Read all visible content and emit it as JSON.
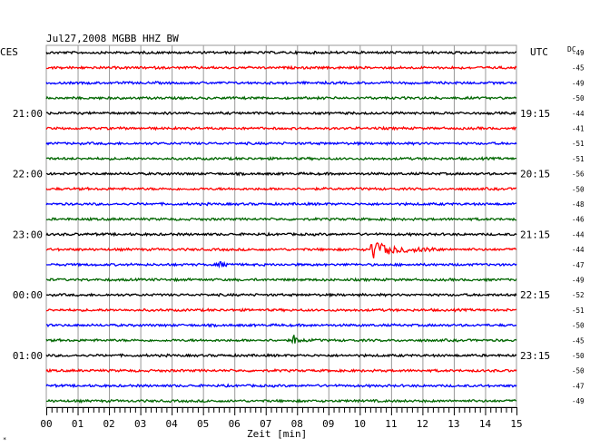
{
  "header": {
    "title": "Jul27,2008   MGBB HHZ BW",
    "left_timezone": "CES",
    "right_timezone": "UTC",
    "dc_label": "DC"
  },
  "footer": {
    "xlabel": "Zeit [min]",
    "corner_mark": "*"
  },
  "colors": {
    "trace_cycle": [
      "#000000",
      "#ff0000",
      "#0000ff",
      "#006600"
    ],
    "grid": "#999999",
    "background": "#ffffff"
  },
  "chart_data": {
    "type": "line",
    "title": "Jul27,2008   MGBB HHZ BW",
    "xlabel": "Zeit [min]",
    "ylabel": "",
    "x_ticks": [
      "00",
      "01",
      "02",
      "03",
      "04",
      "05",
      "06",
      "07",
      "08",
      "09",
      "10",
      "11",
      "12",
      "13",
      "14",
      "15"
    ],
    "xlim": [
      0,
      15
    ],
    "grid": true,
    "rows": 24,
    "left_time_labels": [
      {
        "row": 4,
        "label": "21:00"
      },
      {
        "row": 8,
        "label": "22:00"
      },
      {
        "row": 12,
        "label": "23:00"
      },
      {
        "row": 16,
        "label": "00:00"
      },
      {
        "row": 20,
        "label": "01:00"
      }
    ],
    "right_time_labels": [
      {
        "row": 4,
        "label": "19:15"
      },
      {
        "row": 8,
        "label": "20:15"
      },
      {
        "row": 12,
        "label": "21:15"
      },
      {
        "row": 16,
        "label": "22:15"
      },
      {
        "row": 20,
        "label": "23:15"
      }
    ],
    "dc_offsets": [
      "-49",
      "-45",
      "-49",
      "-50",
      "-44",
      "-41",
      "-51",
      "-51",
      "-56",
      "-50",
      "-48",
      "-46",
      "-44",
      "-44",
      "-47",
      "-49",
      "-52",
      "-51",
      "-50",
      "-45",
      "-50",
      "-50",
      "-47",
      "-49"
    ],
    "events": [
      {
        "row": 13,
        "start_min": 10.3,
        "end_min": 12.9,
        "peak": 12,
        "label": ""
      },
      {
        "row": 14,
        "start_min": 5.5,
        "end_min": 6.0,
        "peak": 3,
        "label": ""
      },
      {
        "row": 19,
        "start_min": 7.8,
        "end_min": 8.6,
        "peak": 8,
        "label": ""
      }
    ]
  }
}
